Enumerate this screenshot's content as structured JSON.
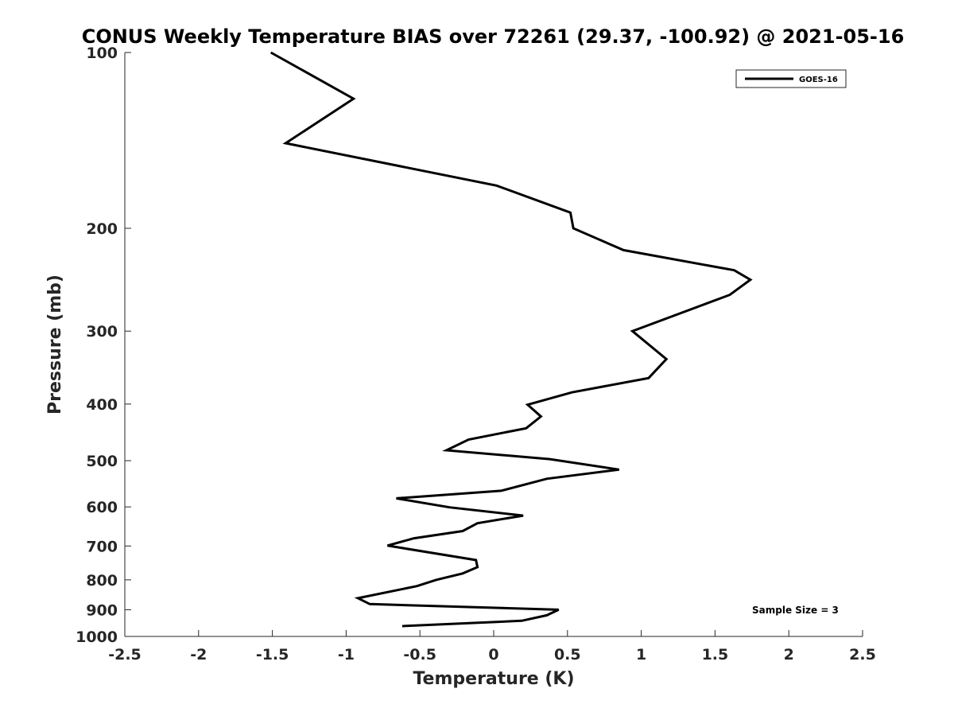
{
  "chart_data": {
    "type": "line",
    "title": "CONUS Weekly Temperature BIAS over 72261 (29.37, -100.92) @ 2021-05-16",
    "xlabel": "Temperature (K)",
    "ylabel": "Pressure (mb)",
    "xlim": [
      -2.5,
      2.5
    ],
    "ylim": [
      100,
      1000
    ],
    "y_scale": "log",
    "y_reversed": true,
    "x_ticks": [
      -2.5,
      -2,
      -1.5,
      -1,
      -0.5,
      0,
      0.5,
      1,
      1.5,
      2,
      2.5
    ],
    "x_tick_labels": [
      "-2.5",
      "-2",
      "-1.5",
      "-1",
      "-0.5",
      "0",
      "0.5",
      "1",
      "1.5",
      "2",
      "2.5"
    ],
    "y_ticks": [
      100,
      200,
      300,
      400,
      500,
      600,
      700,
      800,
      900,
      1000
    ],
    "y_tick_labels": [
      "100",
      "200",
      "300",
      "400",
      "500",
      "600",
      "700",
      "800",
      "900",
      "1000"
    ],
    "grid": false,
    "legend_position": "top-right",
    "series": [
      {
        "name": "GOES-16",
        "color": "#000000",
        "points": [
          [
            -1.51,
            100
          ],
          [
            -0.95,
            120
          ],
          [
            -1.41,
            143
          ],
          [
            0.02,
            169
          ],
          [
            0.52,
            188
          ],
          [
            0.54,
            200
          ],
          [
            0.88,
            218
          ],
          [
            1.63,
            236
          ],
          [
            1.74,
            245
          ],
          [
            1.6,
            260
          ],
          [
            0.94,
            300
          ],
          [
            1.17,
            335
          ],
          [
            1.05,
            361
          ],
          [
            0.53,
            382
          ],
          [
            0.23,
            401
          ],
          [
            0.32,
            420
          ],
          [
            0.22,
            440
          ],
          [
            -0.17,
            460
          ],
          [
            -0.32,
            480
          ],
          [
            0.38,
            497
          ],
          [
            0.85,
            518
          ],
          [
            0.36,
            537
          ],
          [
            0.05,
            563
          ],
          [
            -0.66,
            580
          ],
          [
            -0.3,
            601
          ],
          [
            0.2,
            621
          ],
          [
            -0.11,
            640
          ],
          [
            -0.21,
            660
          ],
          [
            -0.54,
            679
          ],
          [
            -0.72,
            699
          ],
          [
            -0.12,
            740
          ],
          [
            -0.11,
            761
          ],
          [
            -0.21,
            780
          ],
          [
            -0.39,
            800
          ],
          [
            -0.52,
            820
          ],
          [
            -0.92,
            860
          ],
          [
            -0.84,
            880
          ],
          [
            0.44,
            900
          ],
          [
            0.36,
            920
          ],
          [
            0.19,
            940
          ],
          [
            -0.62,
            960
          ]
        ]
      }
    ],
    "annotations": [
      {
        "text": "Sample Size = 3",
        "position": "bottom-right"
      }
    ]
  }
}
